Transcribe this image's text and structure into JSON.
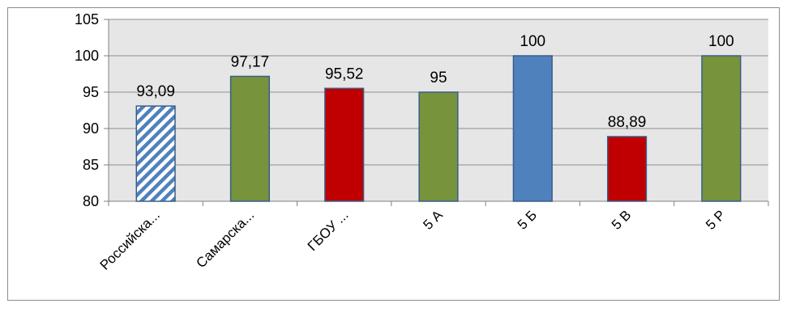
{
  "chart_data": {
    "type": "bar",
    "title": "",
    "xlabel": "",
    "ylabel": "",
    "ylim": [
      80,
      105
    ],
    "yticks": [
      80,
      85,
      90,
      95,
      100,
      105
    ],
    "ytick_labels": [
      "80",
      "85",
      "90",
      "95",
      "100",
      "105"
    ],
    "grid": true,
    "legend": "none",
    "plot_background": "#e6e6e6",
    "categories": [
      "Российска...",
      "Самарска...",
      "ГБОУ ...",
      "5 А",
      "5 Б",
      "5 В",
      "5 Р"
    ],
    "values": [
      93.09,
      97.17,
      95.52,
      95,
      100,
      88.89,
      100
    ],
    "value_labels": [
      "93,09",
      "97,17",
      "95,52",
      "95",
      "100",
      "88,89",
      "100"
    ],
    "bar_styles": [
      {
        "fill": "hatched",
        "color": "#4f81bd"
      },
      {
        "fill": "solid",
        "color": "#77933c"
      },
      {
        "fill": "solid",
        "color": "#c00000"
      },
      {
        "fill": "solid",
        "color": "#77933c"
      },
      {
        "fill": "solid",
        "color": "#4f81bd"
      },
      {
        "fill": "solid",
        "color": "#c00000"
      },
      {
        "fill": "solid",
        "color": "#77933c"
      }
    ]
  }
}
